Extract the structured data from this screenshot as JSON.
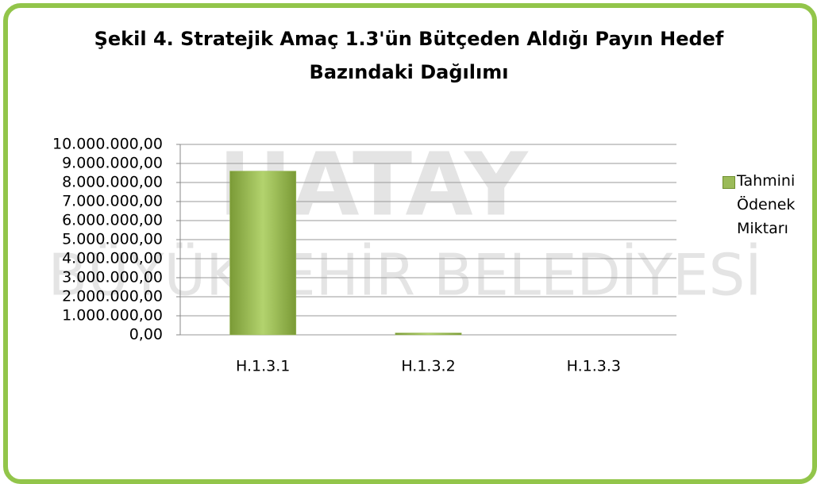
{
  "chart_data": {
    "type": "bar",
    "title": "Şekil 4. Stratejik Amaç 1.3'ün Bütçeden Aldığı Payın Hedef Bazındaki Dağılımı",
    "watermark": [
      "HATAY",
      "BÜYÜKŞEHİR BELEDİYESİ"
    ],
    "categories": [
      "H.1.3.1",
      "H.1.3.2",
      "H.1.3.3"
    ],
    "series": [
      {
        "name": "Tahmini Ödenek Miktarı",
        "color": "#9bbb59",
        "values": [
          8600000,
          100000,
          0
        ]
      }
    ],
    "ylim": [
      0,
      10000000
    ],
    "yticks": [
      {
        "value": 0,
        "label": "0,00"
      },
      {
        "value": 1000000,
        "label": "1.000.000,00"
      },
      {
        "value": 2000000,
        "label": "2.000.000,00"
      },
      {
        "value": 3000000,
        "label": "3.000.000,00"
      },
      {
        "value": 4000000,
        "label": "4.000.000,00"
      },
      {
        "value": 5000000,
        "label": "5.000.000,00"
      },
      {
        "value": 6000000,
        "label": "6.000.000,00"
      },
      {
        "value": 7000000,
        "label": "7.000.000,00"
      },
      {
        "value": 8000000,
        "label": "8.000.000,00"
      },
      {
        "value": 9000000,
        "label": "9.000.000,00"
      },
      {
        "value": 10000000,
        "label": "10.000.000,00"
      }
    ],
    "grid": true,
    "legend": "right"
  }
}
